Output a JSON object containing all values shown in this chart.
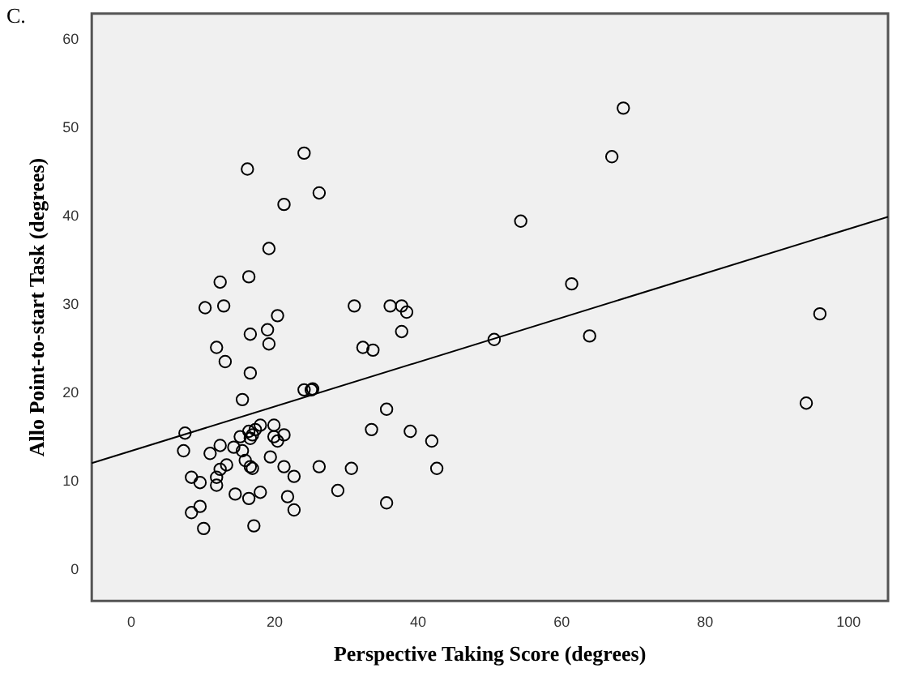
{
  "chart_data": {
    "type": "scatter",
    "xlabel": "Perspective Taking Score (degrees)",
    "ylabel": "Allo Point-to-start Task (degrees)",
    "annotations": [
      "C."
    ],
    "xlim": [
      -5.5,
      105.5
    ],
    "xticks": [
      0,
      20,
      40,
      60,
      80,
      100
    ],
    "ylim": [
      -3.5,
      63
    ],
    "yticks": [
      0,
      10,
      20,
      30,
      40,
      50,
      60
    ],
    "grid": false,
    "legend": false,
    "series": [
      {
        "color": "#000000",
        "marker": "circle",
        "x": [
          16.2,
          24.1,
          26.2,
          21.3,
          19.2,
          12.4,
          16.4,
          10.3,
          12.9,
          20.4,
          31.1,
          36.1,
          37.7,
          38.4,
          16.6,
          19.0,
          19.2,
          11.9,
          13.1,
          16.6,
          32.3,
          33.7,
          37.7,
          15.5,
          24.1,
          25.1,
          25.3,
          35.6,
          33.5,
          38.9,
          41.9,
          42.6,
          7.5,
          7.3,
          11.0,
          12.4,
          14.3,
          15.5,
          15.2,
          16.4,
          16.9,
          17.3,
          18.0,
          19.9,
          19.9,
          20.4,
          21.3,
          16.6,
          15.9,
          16.6,
          16.9,
          13.3,
          12.4,
          11.9,
          11.9,
          8.4,
          9.6,
          19.4,
          21.3,
          22.7,
          26.2,
          30.7,
          14.5,
          16.4,
          18.0,
          21.8,
          22.7,
          28.8,
          35.6,
          8.4,
          9.6,
          10.1,
          17.1,
          68.6,
          67.0,
          54.3,
          61.4,
          50.6,
          63.9,
          96.0,
          94.1
        ],
        "values": [
          45.4,
          47.2,
          42.7,
          41.4,
          36.4,
          32.6,
          33.2,
          29.7,
          29.9,
          28.8,
          29.9,
          29.9,
          29.9,
          29.2,
          26.7,
          27.2,
          25.6,
          25.2,
          23.6,
          22.3,
          25.2,
          24.9,
          27.0,
          19.3,
          20.4,
          20.4,
          20.5,
          18.2,
          15.9,
          15.7,
          14.6,
          11.5,
          15.5,
          13.5,
          13.2,
          14.1,
          13.9,
          13.5,
          15.1,
          15.7,
          15.3,
          15.9,
          16.4,
          16.4,
          15.1,
          14.6,
          15.3,
          14.9,
          12.4,
          11.7,
          11.5,
          11.9,
          11.4,
          10.5,
          9.6,
          10.5,
          9.9,
          12.8,
          11.7,
          10.6,
          11.7,
          11.5,
          8.6,
          8.1,
          8.8,
          8.3,
          6.8,
          9.0,
          7.6,
          6.5,
          7.2,
          4.7,
          5.0,
          52.3,
          46.8,
          39.5,
          32.4,
          26.1,
          26.5,
          29.0,
          18.9
        ]
      },
      {
        "type": "line",
        "color": "#000000",
        "line_style": "solid",
        "x": [
          -5.5,
          105.5
        ],
        "values": [
          12.1,
          40.0
        ]
      }
    ]
  }
}
